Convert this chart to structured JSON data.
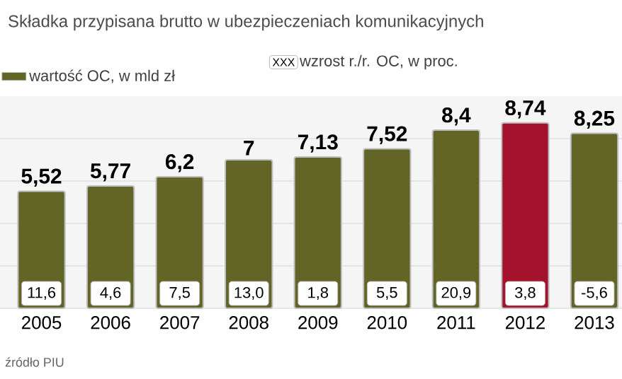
{
  "chart_data": {
    "type": "bar",
    "title": "Składka przypisana brutto w ubezpieczeniach komunikacyjnych",
    "categories": [
      "2005",
      "2006",
      "2007",
      "2008",
      "2009",
      "2010",
      "2011",
      "2012",
      "2013"
    ],
    "series": [
      {
        "name": "wartość OC, w mld zł",
        "color": "#636527",
        "colors": [
          "#636527",
          "#636527",
          "#636527",
          "#636527",
          "#636527",
          "#636527",
          "#636527",
          "#a4122b",
          "#636527"
        ],
        "values": [
          5.52,
          5.77,
          6.2,
          7,
          7.13,
          7.52,
          8.4,
          8.74,
          8.25
        ],
        "value_labels": [
          "5,52",
          "5,77",
          "6,2",
          "7",
          "7,13",
          "7,52",
          "8,4",
          "8,74",
          "8,25"
        ]
      }
    ],
    "ylim": [
      0,
      10
    ],
    "yticks": [
      {
        "value": 0,
        "label": null
      },
      {
        "value": 2,
        "label": null
      },
      {
        "value": 4,
        "label": null
      },
      {
        "value": 6,
        "label": null
      },
      {
        "value": 8,
        "label": null
      }
    ],
    "grid": "y",
    "legend": "top left",
    "tick_labels": "x",
    "annotations": [
      "XXX",
      "wzrost r./r. OC, w proc.",
      "źródło PIU",
      {
        "text": "11,6",
        "x": "2005",
        "y": 0.7
      },
      {
        "text": "4,6",
        "x": "2006",
        "y": 0.7
      },
      {
        "text": "7,5",
        "x": "2007",
        "y": 0.7
      },
      {
        "text": "13,0",
        "x": "2008",
        "y": 0.7
      },
      {
        "text": "1,8",
        "x": "2009",
        "y": 0.7
      },
      {
        "text": "5,5",
        "x": "2010",
        "y": 0.7
      },
      {
        "text": "20,9",
        "x": "2011",
        "y": 0.7
      },
      {
        "text": "3,8",
        "x": "2012",
        "y": 0.7
      },
      {
        "text": "-5,6",
        "x": "2013",
        "y": 0.7
      }
    ]
  }
}
